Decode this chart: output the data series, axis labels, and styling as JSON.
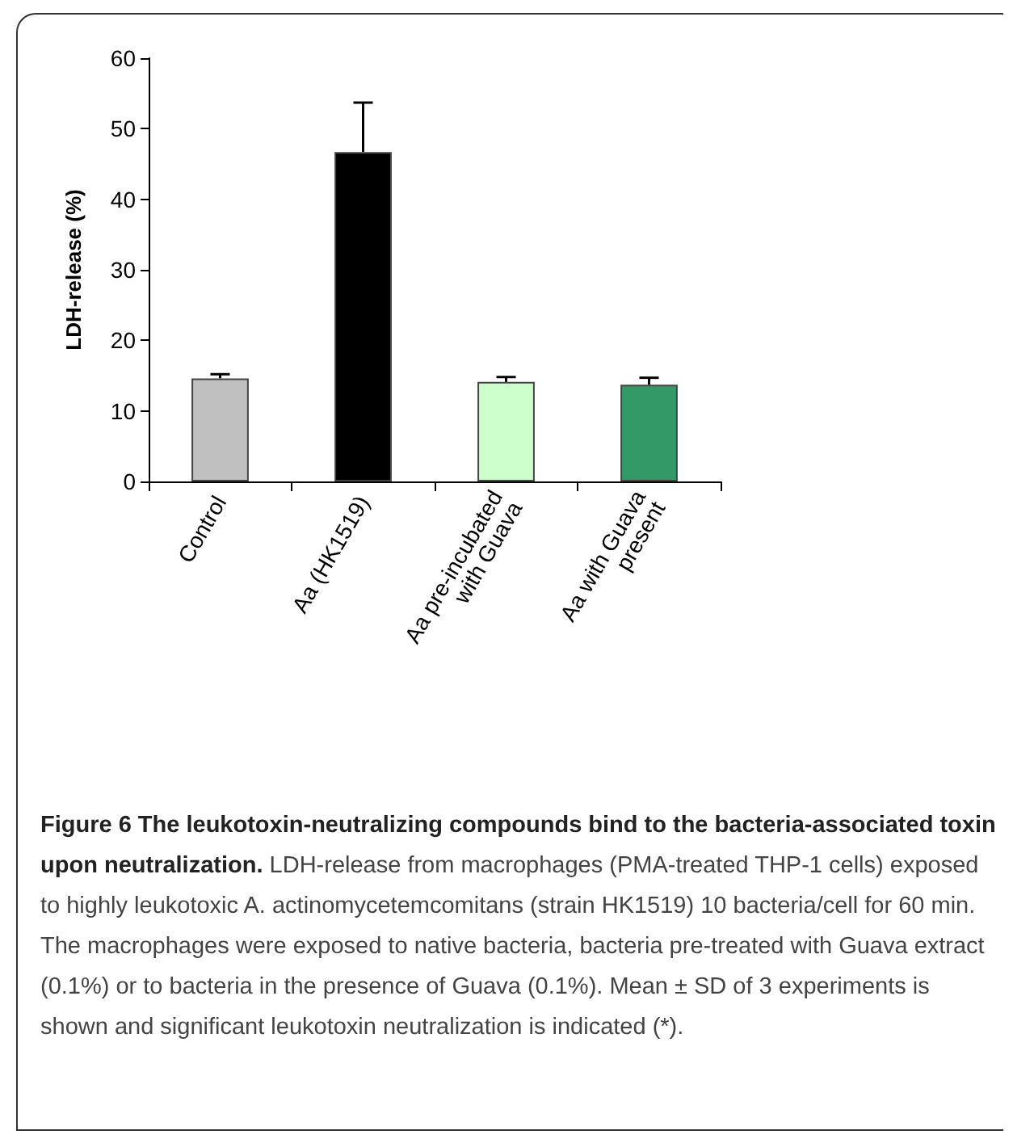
{
  "chart_data": {
    "type": "bar",
    "title": "Figure 6 The leukotoxin-neutralizing compounds bind to the bacteria-associated toxin upon neutralization.",
    "annotations": [
      "LDH-release from macrophages (PMA-treated THP-1 cells) exposed to highly leukotoxic A. actinomycetemcomitans (strain HK1519) 10 bacteria/cell for 60 min. The macrophages were exposed to native bacteria, bacteria pre-treated with Guava extract (0.1%) or to bacteria in the presence of Guava (0.1%). Mean ± SD of 3 experiments is shown and significant leukotoxin neutralization is indicated (*)."
    ],
    "ylabel": "LDH-release (%)",
    "categories": [
      "Control",
      "Aa (HK1519)",
      "Aa pre-incubated with Guava",
      "Aa with Guava present"
    ],
    "values": [
      14.6,
      46.7,
      14.1,
      13.7
    ],
    "colors": [
      "#c0c0c0",
      "#000000",
      "#ccffcc",
      "#339966"
    ],
    "errors": [
      [
        14.6,
        15.2
      ],
      [
        46.7,
        53.7
      ],
      [
        14.1,
        14.8
      ],
      [
        13.7,
        14.7
      ]
    ],
    "ylim": [
      0,
      60
    ],
    "yticks": [
      0,
      10,
      20,
      30,
      40,
      50,
      60
    ],
    "grid": false
  }
}
